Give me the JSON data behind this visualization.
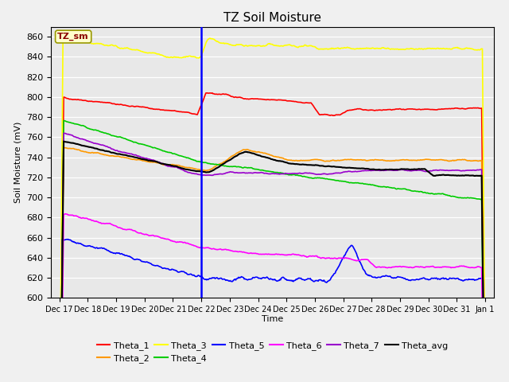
{
  "title": "TZ Soil Moisture",
  "xlabel": "Time",
  "ylabel": "Soil Moisture (mV)",
  "ylim": [
    600,
    870
  ],
  "yticks": [
    600,
    620,
    640,
    660,
    680,
    700,
    720,
    740,
    760,
    780,
    800,
    820,
    840,
    860
  ],
  "legend_label": "TZ_sm",
  "colors": {
    "Theta_1": "#ff0000",
    "Theta_2": "#ff9900",
    "Theta_3": "#ffff00",
    "Theta_4": "#00cc00",
    "Theta_5": "#0000ff",
    "Theta_6": "#ff00ff",
    "Theta_7": "#9900cc",
    "Theta_avg": "#000000"
  },
  "day_labels": [
    "Dec 17",
    "Dec 18",
    "Dec 19",
    "Dec 20",
    "Dec 21",
    "Dec 22",
    "Dec 23",
    "Dec 24",
    "Dec 25",
    "Dec 26",
    "Dec 27",
    "Dec 28",
    "Dec 29",
    "Dec 30",
    "Dec 31",
    "Jan 1"
  ],
  "short_labels": [
    "Dec 1",
    "Dec 18",
    "Dec 19",
    "Dec 20",
    "Dec 21",
    "Dec 2",
    "Dec 2",
    "Dec 24",
    "Dec 25",
    "Dec 26",
    "Dec 27",
    "Dec 28",
    "Dec 29",
    "Dec 30",
    "Dec 31",
    "Jan 1"
  ]
}
